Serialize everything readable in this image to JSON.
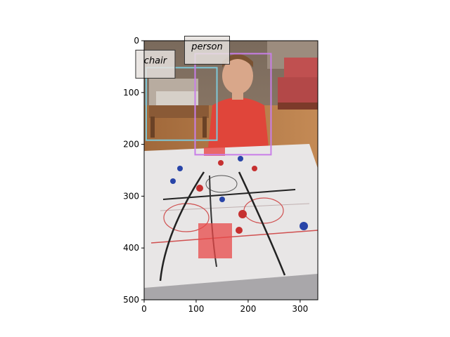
{
  "image": {
    "description_of_scene": "Photo: a boy seated behind a table hockey game, with a chair and a sofa in the background.",
    "width": 334,
    "height": 500
  },
  "axes": {
    "x_ticks": [
      0,
      100,
      200,
      300
    ],
    "y_ticks": [
      0,
      100,
      200,
      300,
      400,
      500
    ],
    "x_lim": [
      0,
      334
    ],
    "y_lim": [
      500,
      0
    ]
  },
  "detections": [
    {
      "label": "chair",
      "color": "#7ec8d8",
      "x0": 4,
      "y0": 52,
      "x1": 140,
      "y1": 192
    },
    {
      "label": "person",
      "color": "#c87ee8",
      "x0": 98,
      "y0": 25,
      "x1": 244,
      "y1": 220
    }
  ],
  "colors": {
    "frame": "#000000",
    "label_box_bg": "#e6e2de",
    "label_box_border": "#333333"
  }
}
